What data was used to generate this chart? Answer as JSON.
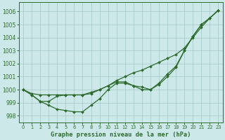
{
  "title": "Graphe pression niveau de la mer (hPa)",
  "background_color": "#cce8e8",
  "grid_color": "#aacccc",
  "line_color": "#2d6b2d",
  "xlim": [
    -0.5,
    23.5
  ],
  "ylim": [
    997.5,
    1006.7
  ],
  "yticks": [
    998,
    999,
    1000,
    1001,
    1002,
    1003,
    1004,
    1005,
    1006
  ],
  "xticks": [
    0,
    1,
    2,
    3,
    4,
    5,
    6,
    7,
    8,
    9,
    10,
    11,
    12,
    13,
    14,
    15,
    16,
    17,
    18,
    19,
    20,
    21,
    22,
    23
  ],
  "s_detailed": [
    1000.0,
    999.6,
    999.1,
    998.8,
    998.5,
    998.4,
    998.3,
    998.3,
    998.8,
    999.3,
    1000.0,
    1000.5,
    1000.5,
    1000.3,
    1000.2,
    1000.0,
    1000.4,
    1001.0,
    1001.7,
    1003.0,
    1004.1,
    1005.0,
    1005.5,
    1006.1
  ],
  "s_medium": [
    1000.0,
    999.6,
    999.1,
    999.1,
    999.5,
    999.6,
    999.6,
    999.6,
    999.8,
    1000.0,
    1000.3,
    1000.6,
    1000.6,
    1000.3,
    1000.0,
    1000.0,
    1000.5,
    1001.2,
    1001.8,
    1003.0,
    1004.1,
    1005.0,
    1005.5,
    1006.1
  ],
  "s_straight": [
    1000.0,
    999.7,
    999.6,
    999.6,
    999.6,
    999.6,
    999.6,
    999.6,
    999.7,
    1000.0,
    1000.3,
    1000.7,
    1001.0,
    1001.3,
    1001.5,
    1001.8,
    1002.1,
    1002.4,
    1002.7,
    1003.2,
    1004.0,
    1004.8,
    1005.5,
    1006.1
  ]
}
